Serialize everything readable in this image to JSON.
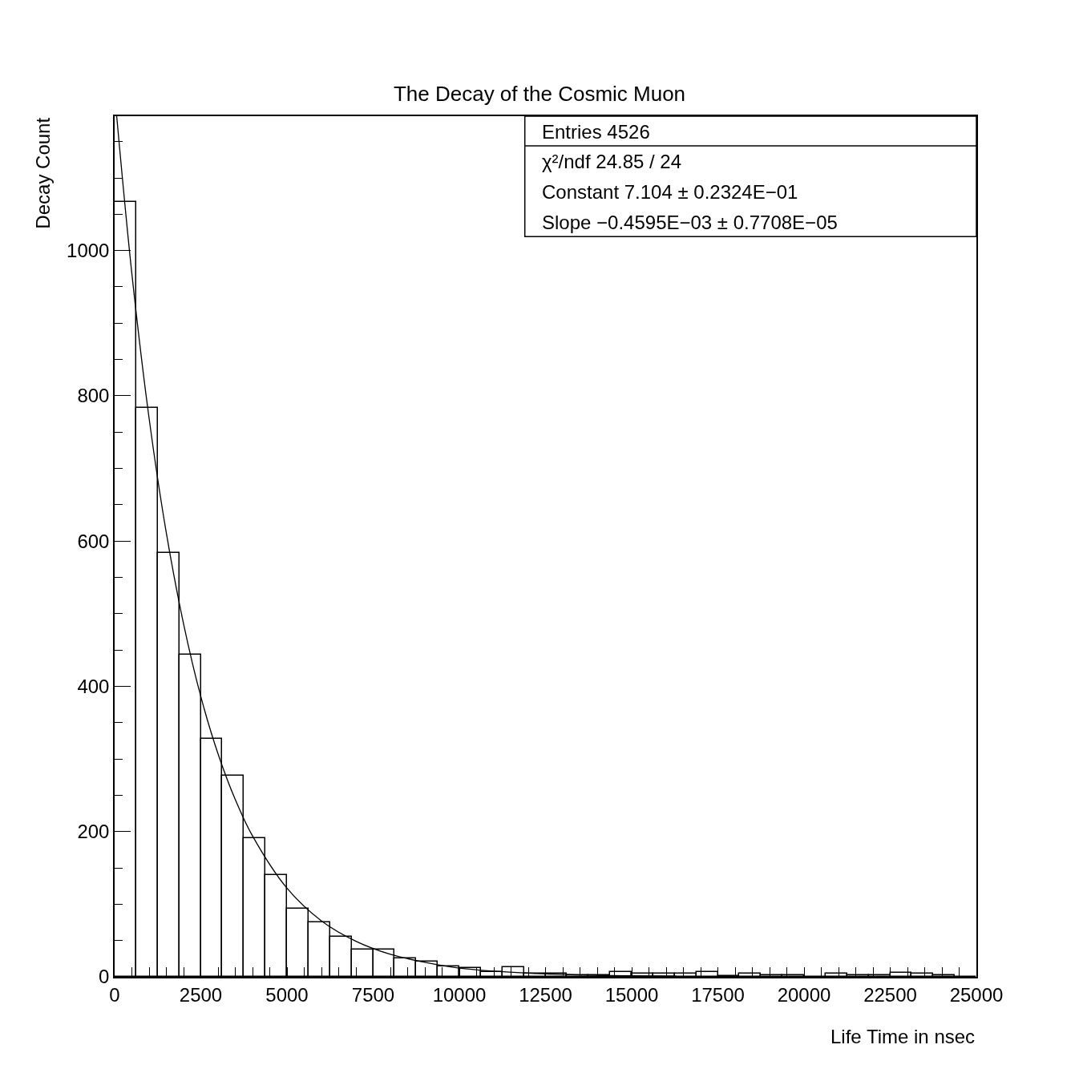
{
  "chart_data": {
    "type": "histogram",
    "title": "The Decay of the Cosmic Muon",
    "xlabel": "Life Time in nsec",
    "ylabel": "Decay Count",
    "bins": [
      0,
      625,
      1250,
      1875,
      2500,
      3125,
      3750,
      4375,
      5000,
      5625,
      6250,
      6875,
      7500,
      8125,
      8750,
      9375,
      10000,
      10625,
      11250,
      11875,
      12500,
      13125,
      13750,
      14375,
      15000,
      15625,
      16250,
      16875,
      17500,
      18125,
      18750,
      19375,
      20000,
      20625,
      21250,
      21875,
      22500,
      23125,
      23750,
      24375,
      25000
    ],
    "values": [
      1067,
      783,
      584,
      444,
      328,
      277,
      191,
      140,
      94,
      75,
      55,
      37,
      37,
      25,
      21,
      14,
      12,
      7,
      13,
      4,
      4,
      2,
      2,
      7,
      4,
      4,
      4,
      7,
      1,
      4,
      2,
      2,
      0,
      4,
      2,
      2,
      6,
      4,
      2,
      0
    ],
    "color": "#000000",
    "series": [
      {
        "type": "line",
        "color": "#000000",
        "x": [
          60,
          500,
          1000,
          1500,
          2000,
          2500,
          3000,
          3500,
          4000,
          5000,
          6000,
          7000,
          8000,
          9000,
          10000,
          12000,
          14000,
          16300
        ],
        "values": [
          1185,
          968,
          769,
          611,
          486,
          386,
          307,
          244,
          194,
          122,
          77,
          49,
          31,
          20,
          12,
          5,
          2,
          1
        ]
      }
    ],
    "xlim": [
      0,
      25000
    ],
    "xticks": [
      0,
      2500,
      5000,
      7500,
      10000,
      12500,
      15000,
      17500,
      20000,
      22500,
      25000
    ],
    "ylim": [
      0,
      1185
    ],
    "yticks": [
      0,
      200,
      400,
      600,
      800,
      1000
    ],
    "annotations": [
      "Entries 4526",
      "χ²/ndf 24.85 / 24",
      "Constant 7.104 ± 0.2324E−01",
      "Slope −0.4595E−03 ± 0.7708E−05"
    ],
    "grid": false
  }
}
